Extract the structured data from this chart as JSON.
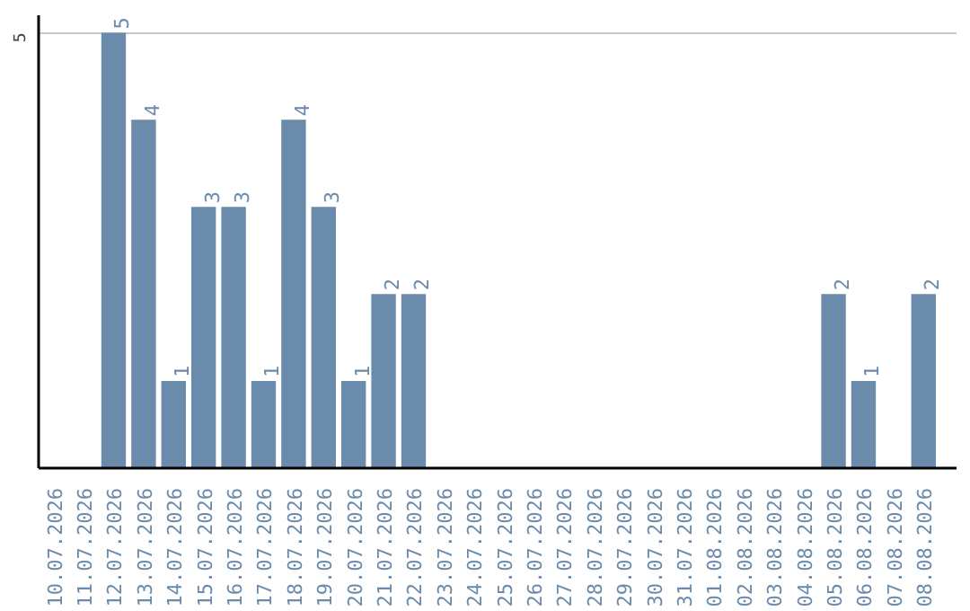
{
  "chart_data": {
    "type": "bar",
    "categories": [
      "10.07.2026",
      "11.07.2026",
      "12.07.2026",
      "13.07.2026",
      "14.07.2026",
      "15.07.2026",
      "16.07.2026",
      "17.07.2026",
      "18.07.2026",
      "19.07.2026",
      "20.07.2026",
      "21.07.2026",
      "22.07.2026",
      "23.07.2026",
      "24.07.2026",
      "25.07.2026",
      "26.07.2026",
      "27.07.2026",
      "28.07.2026",
      "29.07.2026",
      "30.07.2026",
      "31.07.2026",
      "01.08.2026",
      "02.08.2026",
      "03.08.2026",
      "04.08.2026",
      "05.08.2026",
      "06.08.2026",
      "07.08.2026",
      "08.08.2026"
    ],
    "values": [
      0,
      0,
      5,
      4,
      1,
      3,
      3,
      1,
      4,
      3,
      1,
      2,
      2,
      0,
      0,
      0,
      0,
      0,
      0,
      0,
      0,
      0,
      0,
      0,
      0,
      0,
      2,
      1,
      0,
      2
    ],
    "value_labels": [
      null,
      null,
      "5",
      "4",
      "1",
      "3",
      "3",
      "1",
      "4",
      "3",
      "1",
      "2",
      "2",
      null,
      null,
      null,
      null,
      null,
      null,
      null,
      null,
      null,
      null,
      null,
      null,
      null,
      "2",
      "1",
      null,
      "2"
    ],
    "color": "#6a8bab",
    "ylim": [
      0,
      5.2
    ],
    "yticks": [
      5
    ],
    "grid": "y"
  }
}
